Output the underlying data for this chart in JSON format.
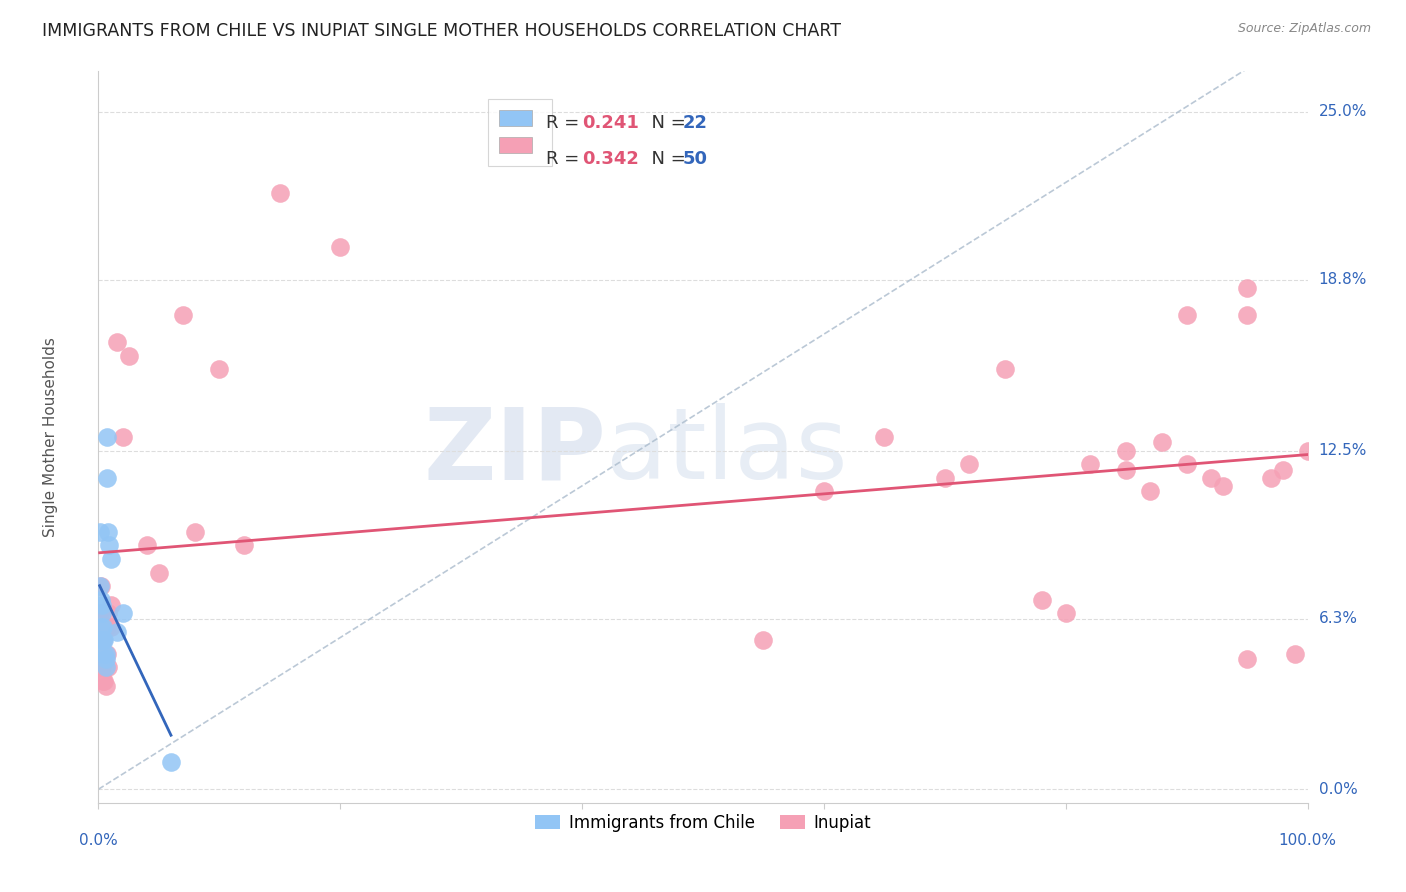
{
  "title": "IMMIGRANTS FROM CHILE VS INUPIAT SINGLE MOTHER HOUSEHOLDS CORRELATION CHART",
  "source": "Source: ZipAtlas.com",
  "ylabel": "Single Mother Households",
  "ytick_values": [
    0.0,
    0.063,
    0.125,
    0.188,
    0.25
  ],
  "ytick_labels": [
    "0.0%",
    "6.3%",
    "12.5%",
    "18.8%",
    "25.0%"
  ],
  "xlim": [
    0.0,
    1.0
  ],
  "ylim": [
    -0.005,
    0.265
  ],
  "chile_color": "#92c5f5",
  "inupiat_color": "#f5a0b5",
  "chile_line_color": "#3366bb",
  "inupiat_line_color": "#e05575",
  "dashed_line_color": "#aabbcc",
  "legend_box_color": "#f0f0f0",
  "legend_border_color": "#cccccc",
  "r_color": "#e05575",
  "n_color": "#3366bb",
  "axis_label_color": "#3366bb",
  "title_color": "#222222",
  "source_color": "#888888",
  "grid_color": "#dddddd",
  "ylabel_color": "#555555",
  "watermark_ZIP_color": "#c8d4e8",
  "watermark_atlas_color": "#b0c4de",
  "chile_points_x": [
    0.001,
    0.001,
    0.002,
    0.002,
    0.003,
    0.003,
    0.003,
    0.004,
    0.004,
    0.005,
    0.005,
    0.006,
    0.006,
    0.006,
    0.007,
    0.007,
    0.008,
    0.009,
    0.01,
    0.015,
    0.02,
    0.06
  ],
  "chile_points_y": [
    0.095,
    0.075,
    0.07,
    0.06,
    0.068,
    0.065,
    0.055,
    0.06,
    0.055,
    0.055,
    0.05,
    0.05,
    0.048,
    0.045,
    0.13,
    0.115,
    0.095,
    0.09,
    0.085,
    0.058,
    0.065,
    0.01
  ],
  "inupiat_points_x": [
    0.001,
    0.002,
    0.003,
    0.003,
    0.004,
    0.004,
    0.005,
    0.005,
    0.006,
    0.007,
    0.007,
    0.008,
    0.008,
    0.01,
    0.01,
    0.015,
    0.02,
    0.025,
    0.04,
    0.05,
    0.07,
    0.08,
    0.1,
    0.12,
    0.15,
    0.2,
    0.55,
    0.6,
    0.65,
    0.7,
    0.72,
    0.75,
    0.78,
    0.8,
    0.82,
    0.85,
    0.85,
    0.87,
    0.88,
    0.9,
    0.9,
    0.92,
    0.93,
    0.95,
    0.95,
    0.95,
    0.97,
    0.98,
    0.99,
    1.0
  ],
  "inupiat_points_y": [
    0.065,
    0.075,
    0.06,
    0.045,
    0.055,
    0.04,
    0.04,
    0.048,
    0.038,
    0.06,
    0.05,
    0.045,
    0.065,
    0.068,
    0.06,
    0.165,
    0.13,
    0.16,
    0.09,
    0.08,
    0.175,
    0.095,
    0.155,
    0.09,
    0.22,
    0.2,
    0.055,
    0.11,
    0.13,
    0.115,
    0.12,
    0.155,
    0.07,
    0.065,
    0.12,
    0.125,
    0.118,
    0.11,
    0.128,
    0.175,
    0.12,
    0.115,
    0.112,
    0.185,
    0.175,
    0.048,
    0.115,
    0.118,
    0.05,
    0.125
  ]
}
